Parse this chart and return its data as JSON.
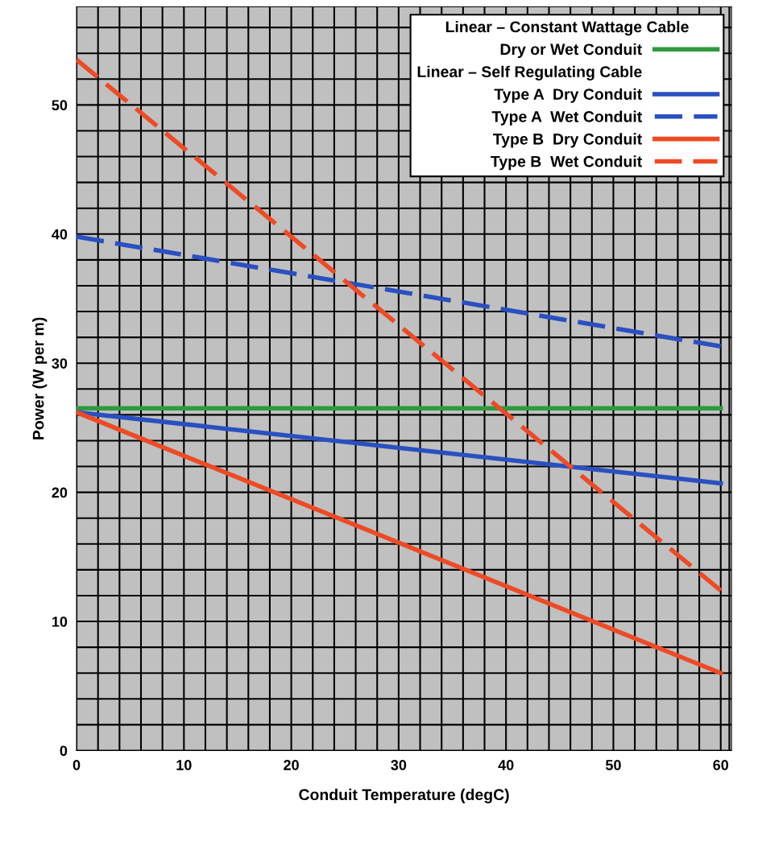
{
  "chart_data": {
    "type": "line",
    "xlabel": "Conduit Temperature (degC)",
    "ylabel": "Power (W per m)",
    "x": [
      0,
      60
    ],
    "legend_title": "Linear – Constant Wattage Cable",
    "annotations": [
      "Linear – Self Regulating Cable"
    ],
    "series": [
      {
        "name": "Dry or Wet Conduit",
        "color": "#2e9a3e",
        "values": [
          26.5,
          26.5
        ],
        "line_style": "solid"
      },
      {
        "name": "Type A  Dry Conduit",
        "color": "#2a50c0",
        "values": [
          26.2,
          20.7
        ],
        "line_style": "solid"
      },
      {
        "name": "Type A  Wet Conduit",
        "color": "#2a50c0",
        "values": [
          39.8,
          31.3
        ],
        "line_style": "dashed"
      },
      {
        "name": "Type B  Dry Conduit",
        "color": "#ee4a25",
        "values": [
          26.2,
          6.0
        ],
        "line_style": "solid"
      },
      {
        "name": "Type B  Wet Conduit",
        "color": "#ee4a25",
        "values": [
          53.5,
          12.4
        ],
        "line_style": "dashed"
      }
    ],
    "xlim": [
      0,
      61
    ],
    "ylim": [
      0,
      57.6
    ],
    "xticks": [
      0,
      {
        "value": 2,
        "label": null
      },
      {
        "value": 4,
        "label": null
      },
      {
        "value": 6,
        "label": null
      },
      {
        "value": 8,
        "label": null
      },
      10,
      {
        "value": 12,
        "label": null
      },
      {
        "value": 14,
        "label": null
      },
      {
        "value": 16,
        "label": null
      },
      {
        "value": 18,
        "label": null
      },
      20,
      {
        "value": 22,
        "label": null
      },
      {
        "value": 24,
        "label": null
      },
      {
        "value": 26,
        "label": null
      },
      {
        "value": 28,
        "label": null
      },
      30,
      {
        "value": 32,
        "label": null
      },
      {
        "value": 34,
        "label": null
      },
      {
        "value": 36,
        "label": null
      },
      {
        "value": 38,
        "label": null
      },
      40,
      {
        "value": 42,
        "label": null
      },
      {
        "value": 44,
        "label": null
      },
      {
        "value": 46,
        "label": null
      },
      {
        "value": 48,
        "label": null
      },
      50,
      {
        "value": 52,
        "label": null
      },
      {
        "value": 54,
        "label": null
      },
      {
        "value": 56,
        "label": null
      },
      {
        "value": 58,
        "label": null
      },
      60,
      {
        "value": 60.8,
        "label": null
      }
    ],
    "yticks": [
      0,
      {
        "value": 2,
        "label": null
      },
      {
        "value": 4,
        "label": null
      },
      {
        "value": 6,
        "label": null
      },
      {
        "value": 8,
        "label": null
      },
      10,
      {
        "value": 12,
        "label": null
      },
      {
        "value": 14,
        "label": null
      },
      {
        "value": 16,
        "label": null
      },
      {
        "value": 18,
        "label": null
      },
      20,
      {
        "value": 22,
        "label": null
      },
      {
        "value": 24,
        "label": null
      },
      {
        "value": 26,
        "label": null
      },
      {
        "value": 28,
        "label": null
      },
      30,
      {
        "value": 32,
        "label": null
      },
      {
        "value": 34,
        "label": null
      },
      {
        "value": 36,
        "label": null
      },
      {
        "value": 38,
        "label": null
      },
      40,
      {
        "value": 42,
        "label": null
      },
      {
        "value": 44,
        "label": null
      },
      {
        "value": 46,
        "label": null
      },
      {
        "value": 48,
        "label": null
      },
      50,
      {
        "value": 52,
        "label": null
      },
      {
        "value": 54,
        "label": null
      },
      {
        "value": 56,
        "label": null
      }
    ],
    "grid": true,
    "legend": "top right",
    "marker": "none"
  }
}
